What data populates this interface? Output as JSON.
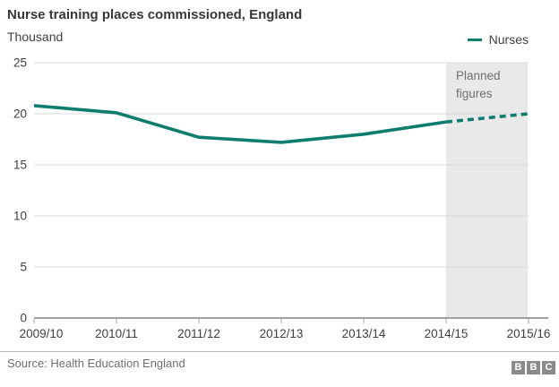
{
  "chart_data": {
    "type": "line",
    "title": "Nurse training places commissioned, England",
    "unit_label": "Thousand",
    "categories": [
      "2009/10",
      "2010/11",
      "2011/12",
      "2012/13",
      "2013/14",
      "2014/15",
      "2015/16"
    ],
    "series": [
      {
        "name": "Nurses",
        "values": [
          20.8,
          20.1,
          17.7,
          17.2,
          18.0,
          19.2,
          20.0
        ],
        "dashed_from_index": 5
      }
    ],
    "ylim": [
      0,
      25
    ],
    "ytick_labels": [
      "25",
      "20",
      "15",
      "10",
      "5",
      "0"
    ],
    "grid": "horizontal",
    "legend_position": "top-right",
    "annotation": {
      "label": "Planned figures",
      "region_categories": [
        "2014/15",
        "2015/16"
      ]
    }
  },
  "colors": {
    "line": "#0e7d70",
    "planned_region": "#e9e9e9",
    "grid": "#d9d9d9",
    "axis": "#a0a0a0",
    "title_text": "#383838",
    "text": "#404040",
    "muted_text": "#6f6f6f",
    "logo": "#8a8a8a"
  },
  "footer": {
    "source": "Source: Health Education England",
    "logo_letters": [
      "B",
      "B",
      "C"
    ]
  }
}
